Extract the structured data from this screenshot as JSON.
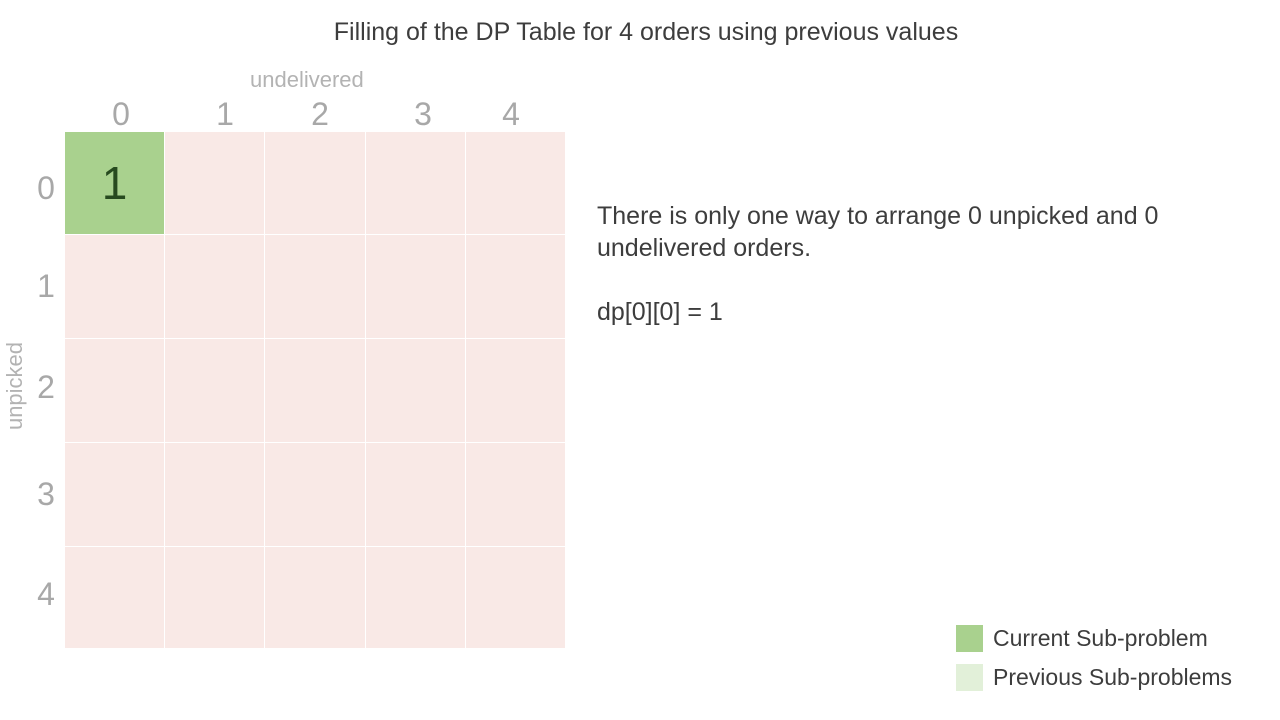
{
  "title": "Filling of the DP Table for 4 orders using previous values",
  "axes": {
    "column_label": "undelivered",
    "row_label": "unpicked",
    "column_headers": [
      "0",
      "1",
      "2",
      "3",
      "4"
    ],
    "row_headers": [
      "0",
      "1",
      "2",
      "3",
      "4"
    ]
  },
  "table": {
    "rows": [
      [
        "1",
        "",
        "",
        "",
        ""
      ],
      [
        "",
        "",
        "",
        "",
        ""
      ],
      [
        "",
        "",
        "",
        "",
        ""
      ],
      [
        "",
        "",
        "",
        "",
        ""
      ],
      [
        "",
        "",
        "",
        "",
        ""
      ]
    ],
    "current_cell": {
      "row": 0,
      "col": 0
    },
    "previous_cells": []
  },
  "explanation": {
    "text": "There is only one way to arrange 0 unpicked and 0 undelivered orders.",
    "formula": "dp[0][0] = 1"
  },
  "legend": [
    {
      "label": "Current Sub-problem",
      "color": "#a9d18e"
    },
    {
      "label": "Previous Sub-problems",
      "color": "#e2f0d9"
    }
  ],
  "colors": {
    "empty_cell": "#f9e9e6",
    "current_cell": "#a9d18e",
    "previous_cell": "#e2f0d9"
  }
}
